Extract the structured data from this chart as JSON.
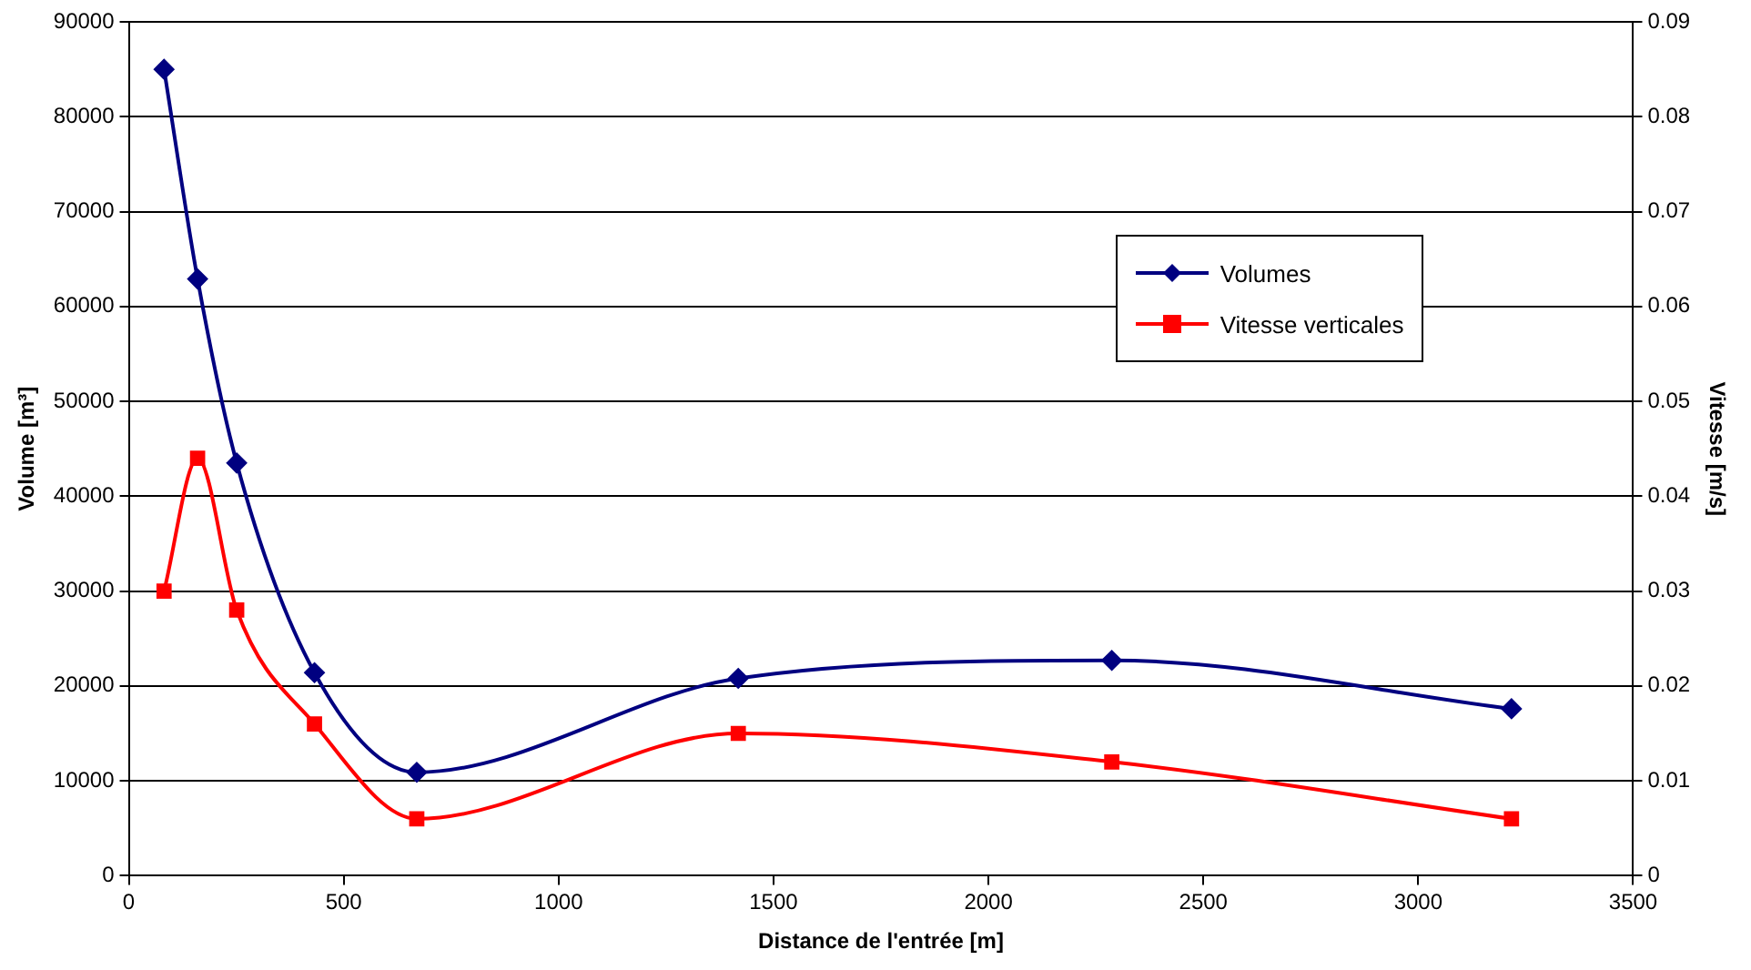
{
  "chart_data": {
    "type": "line",
    "xlabel": "Distance de l'entrée [m]",
    "ylabel": "Volume [m³]",
    "y2label": "Vitesse [m/s]",
    "xlim": [
      0,
      3500
    ],
    "xticks": [
      0,
      500,
      1000,
      1500,
      2000,
      2500,
      3000,
      3500
    ],
    "ylim": [
      0,
      90000
    ],
    "yticks": [
      0,
      10000,
      20000,
      30000,
      40000,
      50000,
      60000,
      70000,
      80000,
      90000
    ],
    "y2lim": [
      0,
      0.09
    ],
    "y2ticks": [
      0,
      0.01,
      0.02,
      0.03,
      0.04,
      0.05,
      0.06,
      0.07,
      0.08,
      0.09
    ],
    "grid": "y",
    "legend": "right",
    "line_style": "solid",
    "series": [
      {
        "name": "Volumes",
        "color": "#000080",
        "marker": "diamond",
        "x": [
          82,
          160,
          251,
          432,
          670,
          1418,
          2287,
          3217
        ],
        "values": [
          85000,
          62900,
          43500,
          21400,
          10900,
          20800,
          22700,
          17600
        ]
      },
      {
        "name": "Vitesse verticales",
        "color": "#ff0000",
        "marker": "square",
        "axis": "y2",
        "x": [
          82,
          160,
          251,
          432,
          670,
          1418,
          2287,
          3217
        ],
        "values": [
          0.03,
          0.044,
          0.028,
          0.016,
          0.006,
          0.015,
          0.012,
          0.006
        ]
      }
    ]
  }
}
